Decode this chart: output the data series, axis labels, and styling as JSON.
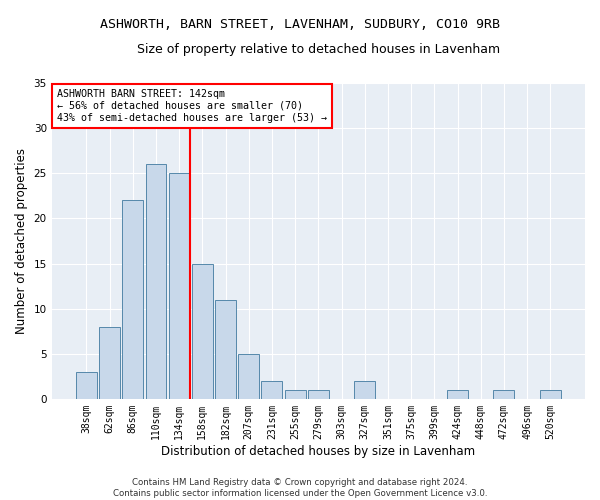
{
  "title": "ASHWORTH, BARN STREET, LAVENHAM, SUDBURY, CO10 9RB",
  "subtitle": "Size of property relative to detached houses in Lavenham",
  "xlabel": "Distribution of detached houses by size in Lavenham",
  "ylabel": "Number of detached properties",
  "bar_labels": [
    "38sqm",
    "62sqm",
    "86sqm",
    "110sqm",
    "134sqm",
    "158sqm",
    "182sqm",
    "207sqm",
    "231sqm",
    "255sqm",
    "279sqm",
    "303sqm",
    "327sqm",
    "351sqm",
    "375sqm",
    "399sqm",
    "424sqm",
    "448sqm",
    "472sqm",
    "496sqm",
    "520sqm"
  ],
  "bar_values": [
    3,
    8,
    22,
    26,
    25,
    15,
    11,
    5,
    2,
    1,
    1,
    0,
    2,
    0,
    0,
    0,
    1,
    0,
    1,
    0,
    1
  ],
  "bar_color": "#c8d8ea",
  "bar_edge_color": "#5588aa",
  "annotation_text": "ASHWORTH BARN STREET: 142sqm\n← 56% of detached houses are smaller (70)\n43% of semi-detached houses are larger (53) →",
  "annotation_box_color": "white",
  "annotation_box_edge": "red",
  "footer_text": "Contains HM Land Registry data © Crown copyright and database right 2024.\nContains public sector information licensed under the Open Government Licence v3.0.",
  "ylim": [
    0,
    35
  ],
  "yticks": [
    0,
    5,
    10,
    15,
    20,
    25,
    30,
    35
  ],
  "background_color": "#e8eef5",
  "grid_color": "white",
  "title_fontsize": 9.5,
  "subtitle_fontsize": 9,
  "tick_fontsize": 7,
  "ylabel_fontsize": 8.5,
  "xlabel_fontsize": 8.5
}
